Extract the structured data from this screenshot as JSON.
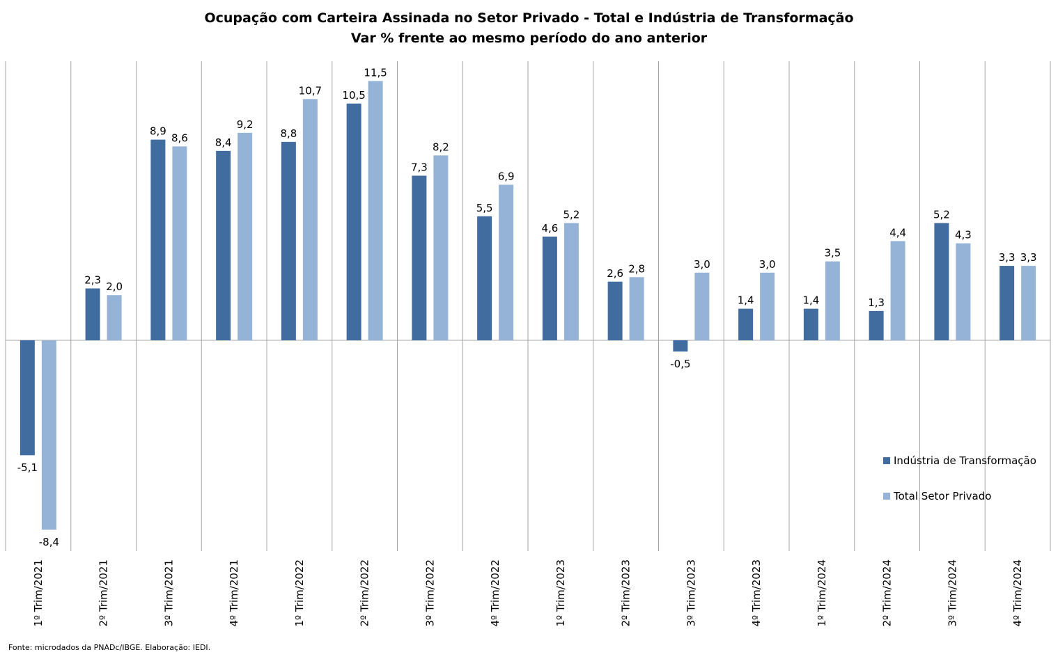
{
  "chart_data": {
    "type": "bar",
    "title": "Ocupação com Carteira Assinada no Setor Privado - Total e Indústria de Transformação",
    "subtitle": "Var % frente ao mesmo período do ano anterior",
    "categories": [
      "1º Trim/2021",
      "2º Trim/2021",
      "3º Trim/2021",
      "4º Trim/2021",
      "1º Trim/2022",
      "2º Trim/2022",
      "3º Trim/2022",
      "4º Trim/2022",
      "1º Trim/2023",
      "2º Trim/2023",
      "3º Trim/2023",
      "4º Trim/2023",
      "1º Trim/2024",
      "2º Trim/2024",
      "3º Trim/2024",
      "4º Trim/2024"
    ],
    "series": [
      {
        "name": "Indústria de Transformação",
        "color": "#416C9F",
        "values": [
          -5.1,
          2.3,
          8.9,
          8.4,
          8.8,
          10.5,
          7.3,
          5.5,
          4.6,
          2.6,
          -0.5,
          1.4,
          1.4,
          1.3,
          5.2,
          3.3
        ],
        "labels": [
          "-5,1",
          "2,3",
          "8,9",
          "8,4",
          "8,8",
          "10,5",
          "7,3",
          "5,5",
          "4,6",
          "2,6",
          "-0,5",
          "1,4",
          "1,4",
          "1,3",
          "5,2",
          "3,3"
        ]
      },
      {
        "name": "Total Setor Privado",
        "color": "#95B3D7",
        "values": [
          -8.4,
          2.0,
          8.6,
          9.2,
          10.7,
          11.5,
          8.2,
          6.9,
          5.2,
          2.8,
          3.0,
          3.0,
          3.5,
          4.4,
          4.3,
          3.3
        ],
        "labels": [
          "-8,4",
          "2,0",
          "8,6",
          "9,2",
          "10,7",
          "11,5",
          "8,2",
          "6,9",
          "5,2",
          "2,8",
          "3,0",
          "3,0",
          "3,5",
          "4,4",
          "4,3",
          "3,3"
        ]
      }
    ],
    "ylim": [
      -9.3,
      12.5
    ],
    "legend": "right",
    "grid": "vertical category separators",
    "source": "Fonte: microdados da PNADc/IBGE. Elaboração: IEDI."
  }
}
